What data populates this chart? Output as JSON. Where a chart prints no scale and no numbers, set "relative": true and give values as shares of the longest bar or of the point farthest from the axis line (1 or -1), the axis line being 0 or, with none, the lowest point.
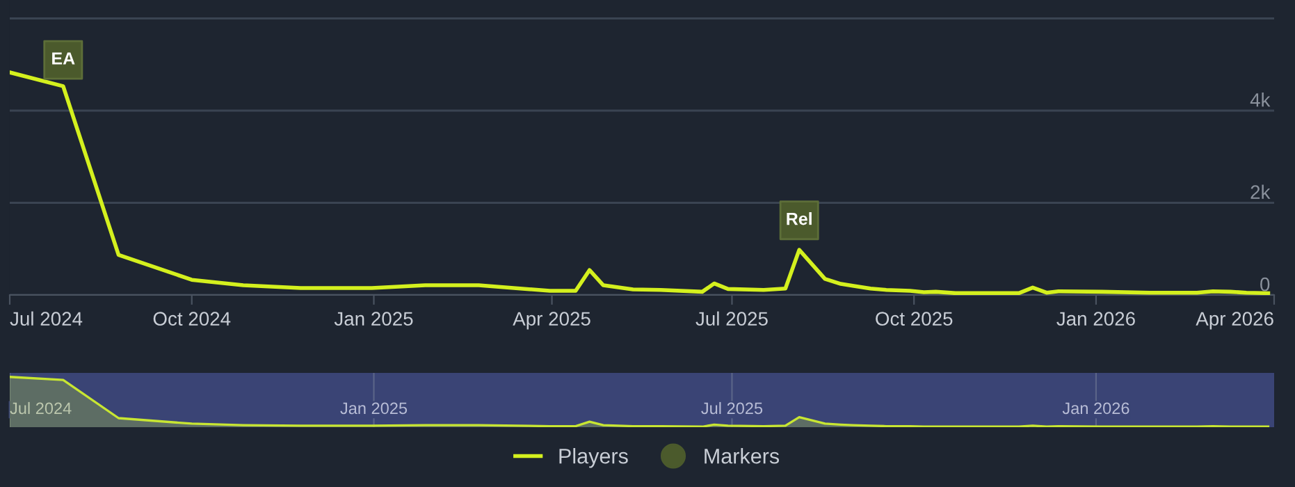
{
  "chart_data": [
    {
      "type": "line",
      "x": [
        "2024-07-01",
        "2024-07-28",
        "2024-08-25",
        "2024-10-01",
        "2024-10-27",
        "2024-11-25",
        "2024-12-31",
        "2025-01-27",
        "2025-02-23",
        "2025-03-31",
        "2025-04-13",
        "2025-04-20",
        "2025-04-27",
        "2025-05-12",
        "2025-05-26",
        "2025-06-16",
        "2025-06-22",
        "2025-06-29",
        "2025-07-17",
        "2025-07-28",
        "2025-08-04",
        "2025-08-17",
        "2025-08-25",
        "2025-08-31",
        "2025-09-09",
        "2025-09-17",
        "2025-09-29",
        "2025-10-06",
        "2025-10-12",
        "2025-10-22",
        "2025-11-23",
        "2025-11-30",
        "2025-12-07",
        "2025-12-13",
        "2026-01-04",
        "2026-01-28",
        "2026-02-21",
        "2026-03-01",
        "2026-03-10",
        "2026-03-18",
        "2026-03-29"
      ],
      "series": [
        {
          "name": "Players",
          "type": "line",
          "color": "#d4f01e",
          "values": [
            4830,
            4530,
            870,
            330,
            210,
            150,
            150,
            210,
            210,
            90,
            90,
            540,
            210,
            120,
            110,
            70,
            250,
            130,
            110,
            140,
            980,
            350,
            240,
            200,
            140,
            110,
            90,
            60,
            70,
            40,
            40,
            160,
            50,
            80,
            70,
            50,
            50,
            80,
            70,
            50,
            40
          ]
        },
        {
          "name": "Markers",
          "type": "scatter",
          "marker": "square",
          "color": "#4b5a2c",
          "x": [
            "2024-07-28",
            "2025-08-04"
          ],
          "values": [
            5100,
            1620
          ]
        }
      ],
      "annotations": [
        {
          "text": "EA",
          "x": "2024-07-28",
          "y": 5100
        },
        {
          "text": "Rel",
          "x": "2025-08-04",
          "y": 1620
        }
      ],
      "xlim": [
        "2024-07-01",
        "2026-04-01"
      ],
      "xticks": [
        {
          "value": "2024-07-01",
          "label": "Jul 2024"
        },
        {
          "value": "2024-10-01",
          "label": "Oct 2024"
        },
        {
          "value": "2025-01-01",
          "label": "Jan 2025"
        },
        {
          "value": "2025-04-01",
          "label": "Apr 2025"
        },
        {
          "value": "2025-07-01",
          "label": "Jul 2025"
        },
        {
          "value": "2025-10-01",
          "label": "Oct 2025"
        },
        {
          "value": "2026-01-01",
          "label": "Jan 2026"
        },
        {
          "value": "2026-04-01",
          "label": "Apr 2026"
        }
      ],
      "ylim": [
        0,
        6400
      ],
      "yticks": [
        0,
        {
          "value": 2000,
          "label": "2k"
        },
        {
          "value": 4000,
          "label": "4k"
        },
        {
          "value": 6000,
          "label": null
        }
      ],
      "grid": "y",
      "legend": "bottom",
      "line_style": "solid"
    },
    {
      "type": "area",
      "relative": true,
      "x": [
        "2024-07-01",
        "2024-07-28",
        "2024-08-25",
        "2024-10-01",
        "2024-10-27",
        "2024-11-25",
        "2024-12-31",
        "2025-01-27",
        "2025-02-23",
        "2025-03-31",
        "2025-04-13",
        "2025-04-20",
        "2025-04-27",
        "2025-05-12",
        "2025-05-26",
        "2025-06-16",
        "2025-06-22",
        "2025-06-29",
        "2025-07-17",
        "2025-07-28",
        "2025-08-04",
        "2025-08-17",
        "2025-08-25",
        "2025-08-31",
        "2025-09-09",
        "2025-09-17",
        "2025-09-29",
        "2025-10-06",
        "2025-10-12",
        "2025-10-22",
        "2025-11-23",
        "2025-11-30",
        "2025-12-07",
        "2025-12-13",
        "2026-01-04",
        "2026-01-28",
        "2026-02-21",
        "2026-03-01",
        "2026-03-10",
        "2026-03-18",
        "2026-03-29"
      ],
      "series": [
        {
          "color": "#c8e632",
          "values": [
            1.0,
            0.94,
            0.18,
            0.07,
            0.04,
            0.03,
            0.03,
            0.04,
            0.04,
            0.02,
            0.02,
            0.11,
            0.04,
            0.02,
            0.02,
            0.01,
            0.05,
            0.03,
            0.02,
            0.03,
            0.2,
            0.07,
            0.05,
            0.04,
            0.03,
            0.02,
            0.02,
            0.01,
            0.01,
            0.01,
            0.01,
            0.03,
            0.01,
            0.02,
            0.01,
            0.01,
            0.01,
            0.02,
            0.01,
            0.01,
            0.01
          ]
        }
      ],
      "bands": [
        {
          "axis": "x",
          "from": "2024-07-01",
          "to": "2026-04-01",
          "color": "#3a4475"
        }
      ],
      "xlim": [
        "2024-07-01",
        "2026-04-01"
      ],
      "xticks": [
        {
          "value": "2024-07-01",
          "label": "Jul 2024"
        },
        {
          "value": "2025-01-01",
          "label": "Jan 2025"
        },
        {
          "value": "2025-07-01",
          "label": "Jul 2025"
        },
        {
          "value": "2026-01-01",
          "label": "Jan 2026"
        }
      ],
      "grid": "x",
      "tick_labels": "x",
      "legend": false
    }
  ]
}
